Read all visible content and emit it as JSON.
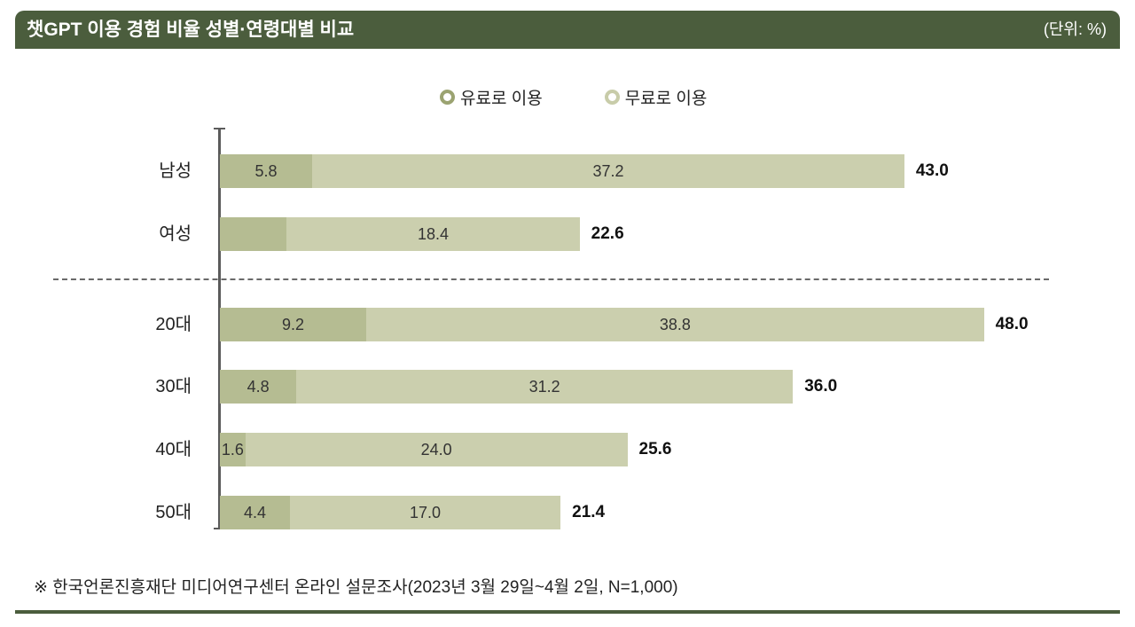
{
  "header": {
    "title": "챗GPT 이용 경험 비율 성별·연령대별 비교",
    "unit": "(단위: %)"
  },
  "colors": {
    "header": "#4b5d3d",
    "bottom_rule": "#4b5d3d"
  },
  "chart_data": {
    "type": "bar",
    "orientation": "horizontal",
    "stacked": true,
    "legend": "top-center",
    "categories": [
      "남성",
      "여성",
      "20대",
      "30대",
      "40대",
      "50대"
    ],
    "series": [
      {
        "name": "유료로 이용",
        "color": "#b5bc92",
        "marker_color": "#9ba371",
        "values": [
          5.8,
          4.2,
          9.2,
          4.8,
          1.6,
          4.4
        ],
        "labels": [
          "5.8",
          null,
          "9.2",
          "4.8",
          "1.6",
          "4.4"
        ]
      },
      {
        "name": "무료로 이용",
        "color": "#cbcfae",
        "marker_color": "#c8cca9",
        "values": [
          37.2,
          18.4,
          38.8,
          31.2,
          24.0,
          17.0
        ],
        "labels": [
          "37.2",
          "18.4",
          "38.8",
          "31.2",
          "24.0",
          "17.0"
        ]
      }
    ],
    "totals": [
      43.0,
      22.6,
      48.0,
      36.0,
      25.6,
      21.4
    ],
    "total_labels": [
      "43.0",
      "22.6",
      "48.0",
      "36.0",
      "25.6",
      "21.4"
    ]
  },
  "footnote": "※ 한국언론진흥재단 미디어연구센터 온라인 설문조사(2023년 3월 29일~4월 2일, N=1,000)"
}
